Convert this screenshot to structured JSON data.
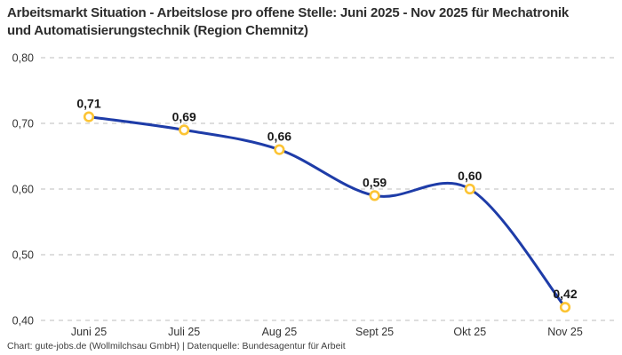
{
  "chart_data": {
    "type": "line",
    "title": "Arbeitsmarkt Situation - Arbeitslose pro offene Stelle: Juni 2025 - Nov 2025 für Mechatronik und Automatisierungstechnik (Region Chemnitz)",
    "categories": [
      "Juni 25",
      "Juli 25",
      "Aug 25",
      "Sept 25",
      "Okt 25",
      "Nov 25"
    ],
    "values": [
      0.71,
      0.69,
      0.66,
      0.59,
      0.6,
      0.42
    ],
    "value_labels": [
      "0,71",
      "0,69",
      "0,66",
      "0,59",
      "0,60",
      "0,42"
    ],
    "y_tick_values": [
      0.8,
      0.7,
      0.6,
      0.5,
      0.4
    ],
    "y_tick_labels": [
      "0,80",
      "0,70",
      "0,60",
      "0,50",
      "0,40"
    ],
    "ylim": [
      0.4,
      0.8
    ],
    "xlabel": "",
    "ylabel": "",
    "grid": "horizontal-dashed",
    "legend": "none",
    "line_color": "#1e3ca8",
    "marker_stroke_color": "#fcc434",
    "marker_fill_color": "#ffffff",
    "grid_color": "#c9c9c9",
    "axis_text_color": "#333333",
    "title_color": "#2d2d2d",
    "footer": "Chart: gute-jobs.de (Wollmilchsau GmbH) | Datenquelle: Bundesagentur für Arbeit"
  }
}
